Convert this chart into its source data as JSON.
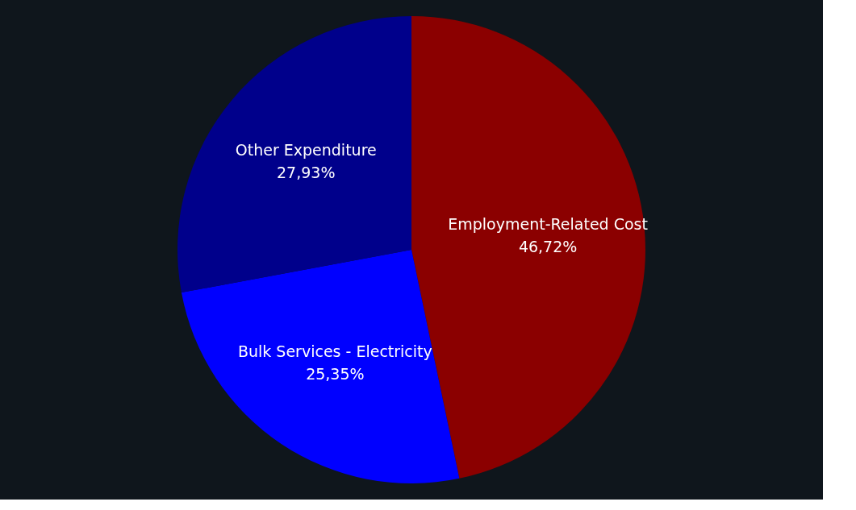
{
  "chart_data": {
    "type": "pie",
    "categories": [
      "Employment-Related Cost",
      "Bulk Services - Electricity",
      "Other Expenditure"
    ],
    "values": [
      46.72,
      25.35,
      27.93
    ],
    "colors": [
      "#8b0000",
      "#0000ff",
      "#00008b"
    ],
    "value_labels": [
      "46,72%",
      "25,35%",
      "27,93%"
    ],
    "legend": false
  }
}
